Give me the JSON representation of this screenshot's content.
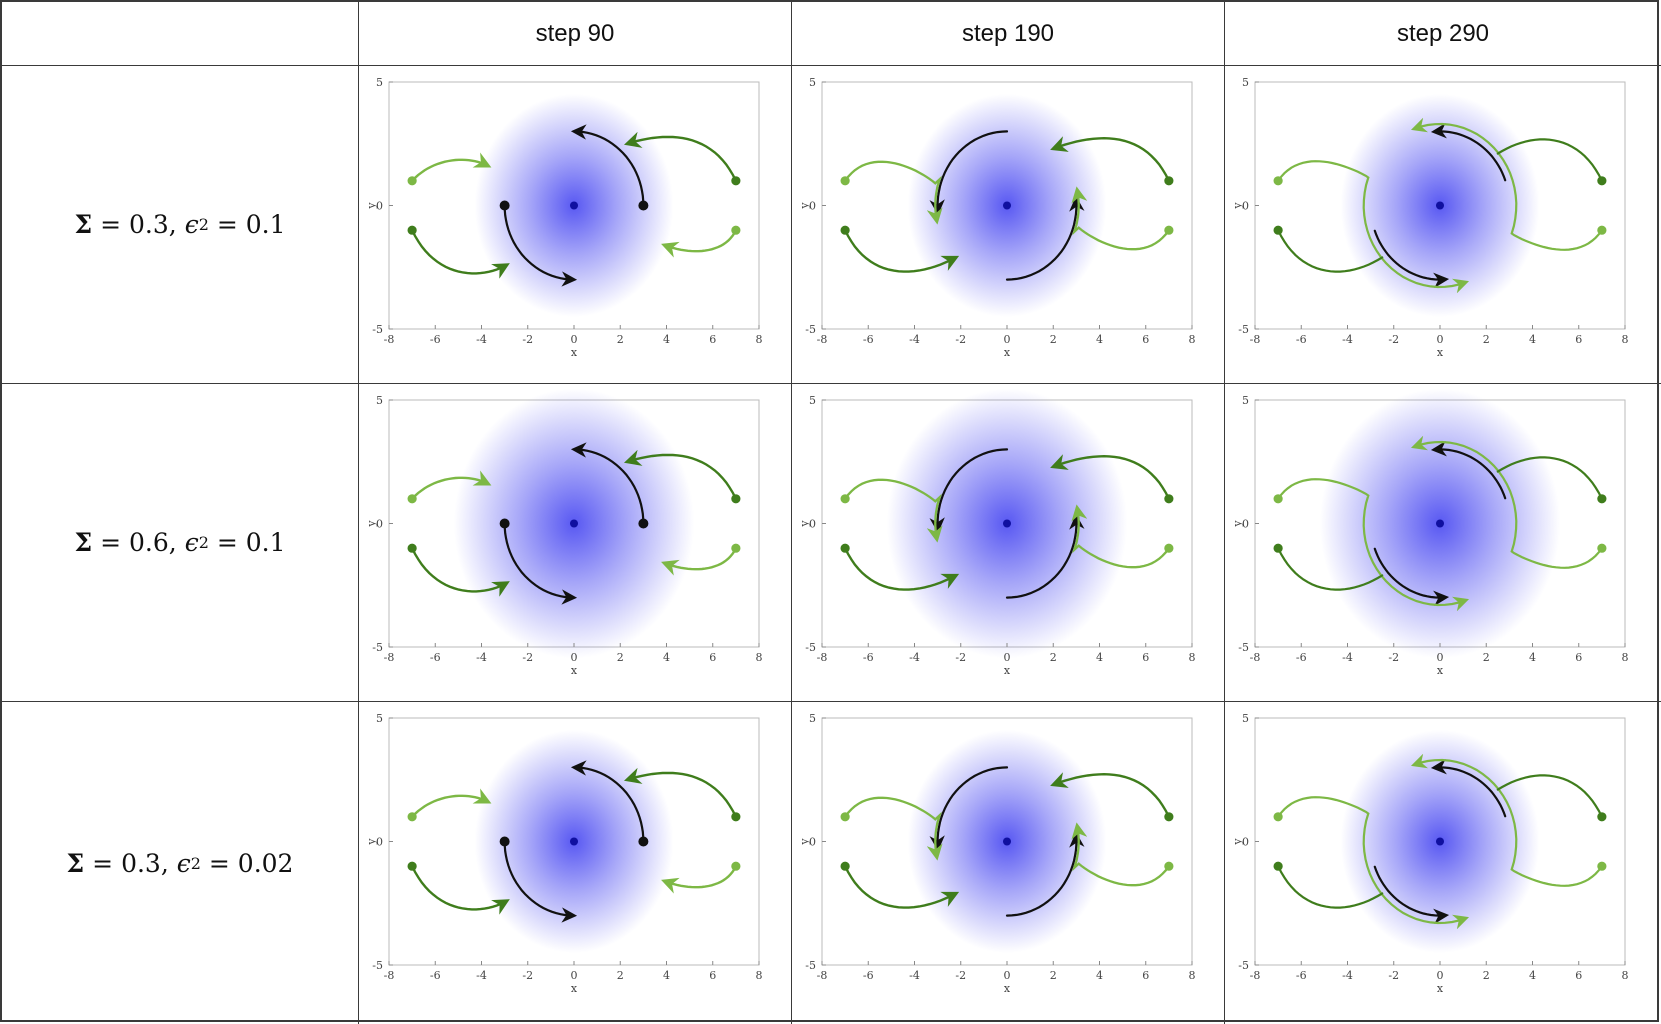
{
  "table": {
    "corner": "",
    "columns": [
      "step 90",
      "step 190",
      "step 290"
    ],
    "rows": [
      {
        "sigma_symbol": "Σ",
        "sigma": "= 0.3,",
        "eps_symbol": "ϵ",
        "eps_sub": "2",
        "eps": "= 0.1"
      },
      {
        "sigma_symbol": "Σ",
        "sigma": "= 0.6,",
        "eps_symbol": "ϵ",
        "eps_sub": "2",
        "eps": "= 0.1"
      },
      {
        "sigma_symbol": "Σ",
        "sigma": "= 0.3,",
        "eps_symbol": "ϵ",
        "eps_sub": "2",
        "eps": "= 0.02"
      }
    ]
  },
  "plot_axes": {
    "xlabel": "x",
    "ylabel": "y",
    "xticks": [
      "-8",
      "-6",
      "-4",
      "-2",
      "0",
      "2",
      "4",
      "6",
      "8"
    ],
    "yticks": [
      "5",
      "0",
      "-5"
    ],
    "xlim": [
      -8,
      8
    ],
    "ylim": [
      -5,
      5
    ]
  },
  "colors": {
    "center_blob": "#3b3bf0",
    "black_agent": "#111111",
    "dark_green_agent": "#3f7d1c",
    "light_green_agent": "#7db845"
  },
  "agents": {
    "black": [
      [
        -3,
        0
      ],
      [
        3,
        0
      ]
    ],
    "dark_green": [
      [
        7,
        1
      ],
      [
        -7,
        -1
      ]
    ],
    "light_green": [
      [
        -7,
        1
      ],
      [
        7,
        -1
      ]
    ],
    "center": [
      0,
      0
    ]
  }
}
